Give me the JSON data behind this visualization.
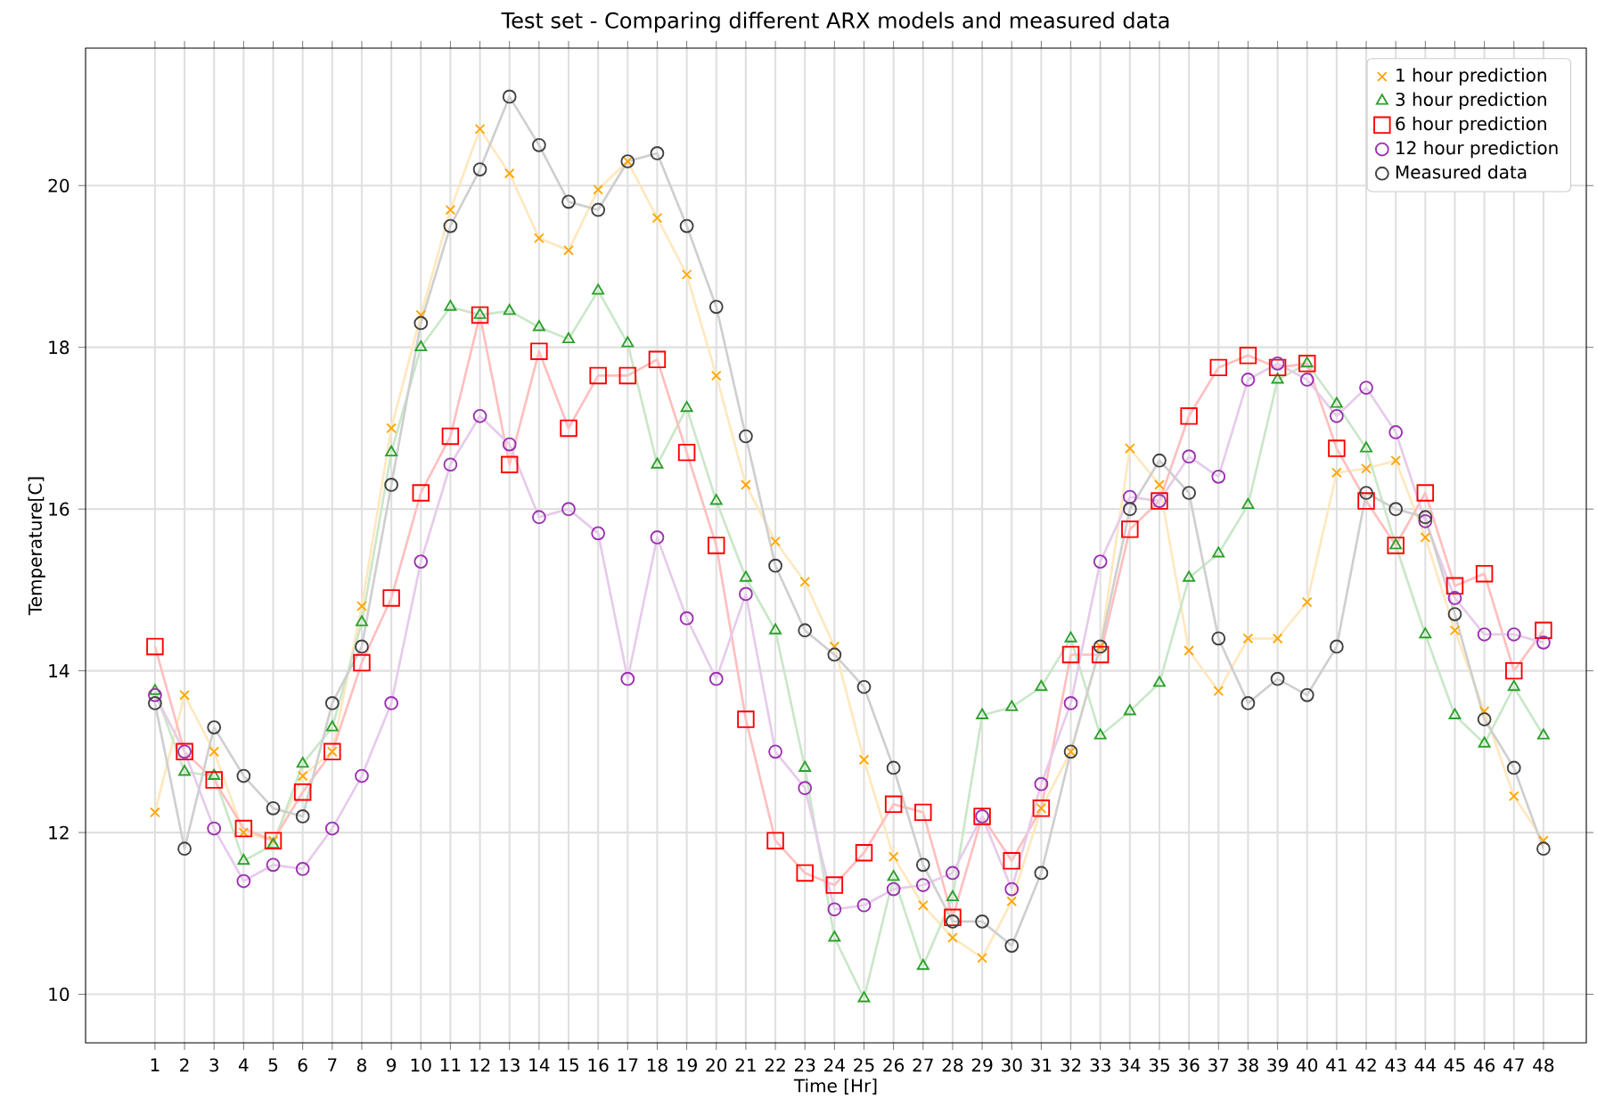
{
  "chart_data": {
    "type": "line",
    "title": "Test set - Comparing different ARX models and measured data",
    "xlabel": "Time [Hr]",
    "ylabel": "Temperature[C]",
    "x": [
      1,
      2,
      3,
      4,
      5,
      6,
      7,
      8,
      9,
      10,
      11,
      12,
      13,
      14,
      15,
      16,
      17,
      18,
      19,
      20,
      21,
      22,
      23,
      24,
      25,
      26,
      27,
      28,
      29,
      30,
      31,
      32,
      33,
      34,
      35,
      36,
      37,
      38,
      39,
      40,
      41,
      42,
      43,
      44,
      45,
      46,
      47,
      48
    ],
    "xlim": [
      -1.35,
      49.45
    ],
    "ylim": [
      9.4,
      21.7
    ],
    "xticks": [
      1,
      2,
      3,
      4,
      5,
      6,
      7,
      8,
      9,
      10,
      11,
      12,
      13,
      14,
      15,
      16,
      17,
      18,
      19,
      20,
      21,
      22,
      23,
      24,
      25,
      26,
      27,
      28,
      29,
      30,
      31,
      32,
      33,
      34,
      35,
      36,
      37,
      38,
      39,
      40,
      41,
      42,
      43,
      44,
      45,
      46,
      47,
      48
    ],
    "yticks": [
      10,
      12,
      14,
      16,
      18,
      20
    ],
    "grid": true,
    "legend": "top right",
    "series": [
      {
        "name": "1 hour prediction",
        "color": "#ffa500",
        "marker": "cross",
        "values": [
          12.25,
          13.7,
          13.0,
          12.0,
          11.9,
          12.7,
          13.0,
          14.8,
          17.0,
          18.4,
          19.7,
          20.7,
          20.15,
          19.35,
          19.2,
          19.95,
          20.3,
          19.6,
          18.9,
          17.65,
          16.3,
          15.6,
          15.1,
          14.3,
          12.9,
          11.7,
          11.1,
          10.7,
          10.45,
          11.15,
          12.3,
          13.0,
          14.3,
          16.75,
          16.3,
          14.25,
          13.75,
          14.4,
          14.4,
          14.85,
          16.45,
          16.5,
          16.6,
          15.65,
          14.5,
          13.5,
          12.45,
          11.9
        ]
      },
      {
        "name": "3 hour prediction",
        "color": "#2ca02c",
        "marker": "triangle",
        "values": [
          13.75,
          12.75,
          12.7,
          11.65,
          11.85,
          12.85,
          13.3,
          14.6,
          16.7,
          18.0,
          18.5,
          18.4,
          18.45,
          18.25,
          18.1,
          18.7,
          18.05,
          16.55,
          17.25,
          16.1,
          15.15,
          14.5,
          12.8,
          10.7,
          9.95,
          11.45,
          10.35,
          11.2,
          13.45,
          13.55,
          13.8,
          14.4,
          13.2,
          13.5,
          13.85,
          15.15,
          15.45,
          16.05,
          17.6,
          17.8,
          17.3,
          16.75,
          15.55,
          14.45,
          13.45,
          13.1,
          13.8,
          13.2
        ]
      },
      {
        "name": "6 hour prediction",
        "color": "#ff0000",
        "marker": "square",
        "values": [
          14.3,
          13.0,
          12.65,
          12.05,
          11.9,
          12.5,
          13.0,
          14.1,
          14.9,
          16.2,
          16.9,
          18.4,
          16.55,
          17.95,
          17.0,
          17.65,
          17.65,
          17.85,
          16.7,
          15.55,
          13.4,
          11.9,
          11.5,
          11.35,
          11.75,
          12.35,
          12.25,
          10.95,
          12.2,
          11.65,
          12.3,
          14.2,
          14.2,
          15.75,
          16.1,
          17.15,
          17.75,
          17.9,
          17.75,
          17.8,
          16.75,
          16.1,
          15.55,
          16.2,
          15.05,
          15.2,
          14.0,
          14.5
        ]
      },
      {
        "name": "12 hour prediction",
        "color": "#9b30b0",
        "marker": "circle",
        "values": [
          13.7,
          13.0,
          12.05,
          11.4,
          11.6,
          11.55,
          12.05,
          12.7,
          13.6,
          15.35,
          16.55,
          17.15,
          16.8,
          15.9,
          16.0,
          15.7,
          13.9,
          15.65,
          14.65,
          13.9,
          14.95,
          13.0,
          12.55,
          11.05,
          11.1,
          11.3,
          11.35,
          11.5,
          12.2,
          11.3,
          12.6,
          13.6,
          15.35,
          16.15,
          16.1,
          16.65,
          16.4,
          17.6,
          17.8,
          17.6,
          17.15,
          17.5,
          16.95,
          15.85,
          14.9,
          14.45,
          14.45,
          14.35
        ]
      },
      {
        "name": "Measured data",
        "color": "#404040",
        "marker": "circle",
        "values": [
          13.6,
          11.8,
          13.3,
          12.7,
          12.3,
          12.2,
          13.6,
          14.3,
          16.3,
          18.3,
          19.5,
          20.2,
          21.1,
          20.5,
          19.8,
          19.7,
          20.3,
          20.4,
          19.5,
          18.5,
          16.9,
          15.3,
          14.5,
          14.2,
          13.8,
          12.8,
          11.6,
          10.9,
          10.9,
          10.6,
          11.5,
          13.0,
          14.3,
          16.0,
          16.6,
          16.2,
          14.4,
          13.6,
          13.9,
          13.7,
          14.3,
          16.2,
          16.0,
          15.9,
          14.7,
          13.4,
          12.8,
          11.8
        ]
      }
    ]
  }
}
